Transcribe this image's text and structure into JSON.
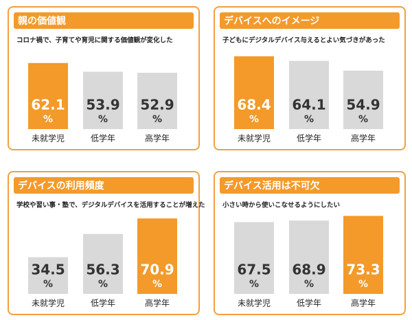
{
  "chart_data": [
    {
      "type": "bar",
      "title": "親の価値観",
      "subtitle": "コロナ禍で、子育てや育児に関する価値観が変化した",
      "categories": [
        "未就学児",
        "低学年",
        "高学年"
      ],
      "values": [
        62.1,
        53.9,
        52.9
      ],
      "unit": "%",
      "colors": [
        "#f39a2a",
        "#d9d9d9",
        "#d9d9d9"
      ],
      "label_colors": [
        "#ffffff",
        "#333333",
        "#333333"
      ]
    },
    {
      "type": "bar",
      "title": "デバイスへのイメージ",
      "subtitle": "子どもにデジタルデバイス与えるとよい気づきがあった",
      "categories": [
        "未就学児",
        "低学年",
        "高学年"
      ],
      "values": [
        68.4,
        64.1,
        54.9
      ],
      "unit": "%",
      "colors": [
        "#f39a2a",
        "#d9d9d9",
        "#d9d9d9"
      ],
      "label_colors": [
        "#ffffff",
        "#333333",
        "#333333"
      ]
    },
    {
      "type": "bar",
      "title": "デバイスの利用頻度",
      "subtitle": "学校や習い事・塾で、デジタルデバイスを活用することが増えた",
      "categories": [
        "未就学児",
        "低学年",
        "高学年"
      ],
      "values": [
        34.5,
        56.3,
        70.9
      ],
      "unit": "%",
      "colors": [
        "#d9d9d9",
        "#d9d9d9",
        "#f39a2a"
      ],
      "label_colors": [
        "#333333",
        "#333333",
        "#ffffff"
      ]
    },
    {
      "type": "bar",
      "title": "デバイス活用は不可欠",
      "subtitle": "小さい時から使いこなせるようにしたい",
      "categories": [
        "未就学児",
        "低学年",
        "高学年"
      ],
      "values": [
        67.5,
        68.9,
        73.3
      ],
      "unit": "%",
      "colors": [
        "#d9d9d9",
        "#d9d9d9",
        "#f39a2a"
      ],
      "label_colors": [
        "#333333",
        "#333333",
        "#ffffff"
      ]
    }
  ]
}
